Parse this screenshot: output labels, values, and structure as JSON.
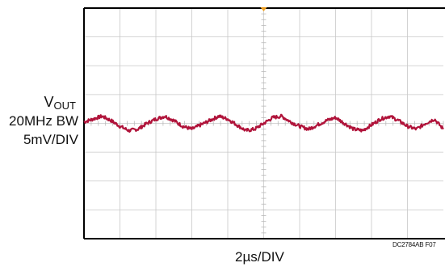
{
  "labels": {
    "vout_main": "V",
    "vout_sub": "OUT",
    "bandwidth": "20MHz BW",
    "volts_per_div": "5mV/DIV",
    "time_per_div": "2µs/DIV",
    "figure_id": "DC2784AB F07"
  },
  "colors": {
    "trace": "#b0133a",
    "grid": "#c8c8c8",
    "frame": "#000000",
    "trigger_marker": "#f0a020"
  },
  "chart_data": {
    "type": "line",
    "title": "",
    "xlabel": "2µs/DIV",
    "ylabel": "VOUT 20MHz BW 5mV/DIV",
    "grid": true,
    "x_divisions": 10,
    "y_divisions": 8,
    "xlim": [
      0,
      10
    ],
    "ylim": [
      -4,
      4
    ],
    "series": [
      {
        "x": [
          0,
          0.25,
          0.5,
          0.75,
          1.0,
          1.25,
          1.5,
          1.75,
          2.0,
          2.25,
          2.5,
          2.75,
          3.0,
          3.25,
          3.5,
          3.75,
          4.0,
          4.25,
          4.5,
          4.75,
          5.0,
          5.25,
          5.5,
          5.75,
          6.0,
          6.25,
          6.5,
          6.75,
          7.0,
          7.25,
          7.5,
          7.75,
          8.0,
          8.25,
          8.5,
          8.75,
          9.0,
          9.25,
          9.5,
          9.75,
          10.0
        ],
        "values": [
          0.05,
          0.15,
          0.25,
          0.1,
          -0.1,
          -0.25,
          -0.2,
          0.0,
          0.15,
          0.25,
          0.1,
          -0.1,
          -0.2,
          -0.05,
          0.1,
          0.25,
          0.15,
          -0.05,
          -0.25,
          -0.2,
          0.0,
          0.2,
          0.25,
          0.05,
          -0.1,
          -0.2,
          -0.05,
          0.1,
          0.2,
          0.0,
          -0.2,
          -0.25,
          -0.05,
          0.15,
          0.25,
          0.1,
          -0.1,
          -0.2,
          0.0,
          0.15,
          -0.2
        ]
      }
    ]
  }
}
